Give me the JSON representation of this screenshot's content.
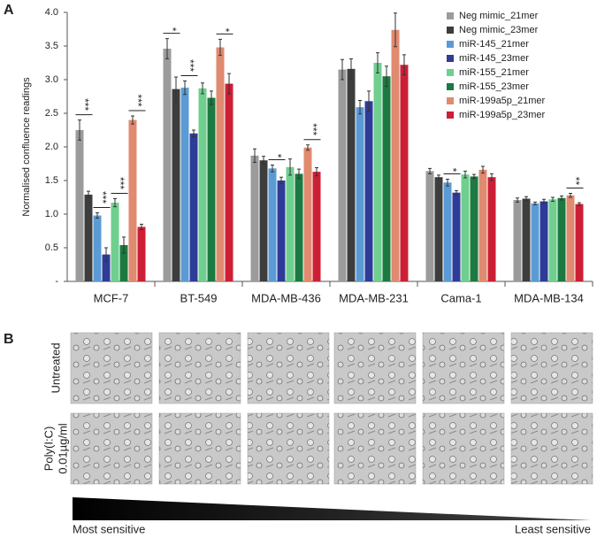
{
  "panel_labels": [
    "A",
    "B"
  ],
  "chart_data": {
    "type": "bar",
    "ylabel": "Normalised confluence readings",
    "categories": [
      "MCF-7",
      "BT-549",
      "MDA-MB-436",
      "MDA-MB-231",
      "Cama-1",
      "MDA-MB-134"
    ],
    "ylim": [
      0,
      4
    ],
    "yticks": [
      {
        "value": 0,
        "label": "-"
      },
      0.5,
      {
        "value": 1,
        "label": "1.0"
      },
      1.5,
      {
        "value": 2,
        "label": "2.0"
      },
      2.5,
      {
        "value": 3,
        "label": "3.0"
      },
      3.5,
      {
        "value": 4,
        "label": "4.0"
      }
    ],
    "legend": "upper right",
    "series": [
      {
        "name": "Neg mimic_21mer",
        "color": "#9b9b9b",
        "values": [
          2.25,
          3.46,
          1.87,
          3.15,
          1.64,
          1.21
        ],
        "errors": [
          0.15,
          0.15,
          0.1,
          0.15,
          0.04,
          0.03
        ]
      },
      {
        "name": "Neg mimic_23mer",
        "color": "#3d3d3d",
        "values": [
          1.29,
          2.86,
          1.8,
          3.16,
          1.55,
          1.23
        ],
        "errors": [
          0.05,
          0.18,
          0.06,
          0.15,
          0.03,
          0.03
        ]
      },
      {
        "name": "miR-145_21mer",
        "color": "#5b9bd5",
        "values": [
          0.98,
          2.88,
          1.68,
          2.59,
          1.47,
          1.16
        ],
        "errors": [
          0.04,
          0.1,
          0.05,
          0.1,
          0.05,
          0.02
        ]
      },
      {
        "name": "miR-145_23mer",
        "color": "#2e3b97",
        "values": [
          0.4,
          2.2,
          1.5,
          2.68,
          1.32,
          1.19
        ],
        "errors": [
          0.1,
          0.05,
          0.05,
          0.15,
          0.03,
          0.03
        ]
      },
      {
        "name": "miR-155_21mer",
        "color": "#6fcf8f",
        "values": [
          1.17,
          2.87,
          1.7,
          3.25,
          1.59,
          1.22
        ],
        "errors": [
          0.06,
          0.08,
          0.12,
          0.15,
          0.05,
          0.03
        ]
      },
      {
        "name": "miR-155_23mer",
        "color": "#1b7a40",
        "values": [
          0.54,
          2.73,
          1.6,
          3.05,
          1.56,
          1.24
        ],
        "errors": [
          0.12,
          0.1,
          0.07,
          0.15,
          0.03,
          0.03
        ]
      },
      {
        "name": "miR-199a5p_21mer",
        "color": "#e08a70",
        "values": [
          2.4,
          3.48,
          1.99,
          3.74,
          1.66,
          1.28
        ],
        "errors": [
          0.06,
          0.12,
          0.04,
          0.25,
          0.05,
          0.03
        ]
      },
      {
        "name": "miR-199a5p_23mer",
        "color": "#cc1f36",
        "values": [
          0.81,
          2.94,
          1.63,
          3.22,
          1.55,
          1.15
        ],
        "errors": [
          0.04,
          0.15,
          0.06,
          0.15,
          0.05,
          0.02
        ]
      }
    ],
    "annotations": [
      {
        "text": "***",
        "category": "MCF-7",
        "between": [
          "Neg mimic_21mer",
          "Neg mimic_23mer"
        ]
      },
      {
        "text": "***",
        "category": "MCF-7",
        "between": [
          "miR-145_21mer",
          "miR-145_23mer"
        ]
      },
      {
        "text": "***",
        "category": "MCF-7",
        "between": [
          "miR-155_21mer",
          "miR-155_23mer"
        ]
      },
      {
        "text": "***",
        "category": "MCF-7",
        "between": [
          "miR-199a5p_21mer",
          "miR-199a5p_23mer"
        ]
      },
      {
        "text": "*",
        "category": "BT-549",
        "between": [
          "Neg mimic_21mer",
          "Neg mimic_23mer"
        ]
      },
      {
        "text": "***",
        "category": "BT-549",
        "between": [
          "miR-145_21mer",
          "miR-145_23mer"
        ]
      },
      {
        "text": "*",
        "category": "BT-549",
        "between": [
          "miR-199a5p_21mer",
          "miR-199a5p_23mer"
        ]
      },
      {
        "text": "*",
        "category": "MDA-MB-436",
        "between": [
          "miR-145_21mer",
          "miR-145_23mer"
        ]
      },
      {
        "text": "***",
        "category": "MDA-MB-436",
        "between": [
          "miR-199a5p_21mer",
          "miR-199a5p_23mer"
        ]
      },
      {
        "text": "*",
        "category": "Cama-1",
        "between": [
          "miR-145_21mer",
          "miR-145_23mer"
        ]
      },
      {
        "text": "**",
        "category": "MDA-MB-134",
        "between": [
          "miR-199a5p_21mer",
          "miR-199a5p_23mer"
        ]
      }
    ]
  },
  "micrographs": {
    "row_labels": [
      [
        "Untreated"
      ],
      [
        "Poly(I:C)",
        "0.01µg/ml"
      ]
    ]
  },
  "gradient": {
    "left": "Most sensitive",
    "right": "Least sensitive"
  }
}
